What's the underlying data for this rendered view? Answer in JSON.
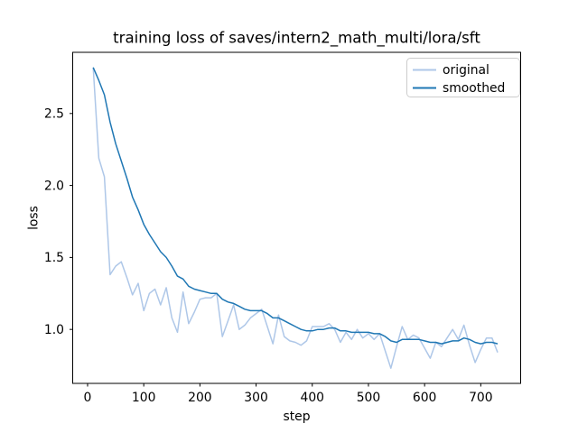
{
  "figure": {
    "title": "training loss of saves/intern2_math_multi/lora/sft",
    "xlabel": "step",
    "ylabel": "loss"
  },
  "colors": {
    "background": "#ffffff",
    "axes_frame": "#000000",
    "text": "#000000",
    "original_line": "#aec7e8",
    "smoothed_line": "#1f77b4",
    "legend_border": "#cccccc",
    "legend_background": "#ffffff"
  },
  "legend": {
    "position": "upper right",
    "items": [
      {
        "label": "original",
        "color": "#aec7e8"
      },
      {
        "label": "smoothed",
        "color": "#1f77b4"
      }
    ]
  },
  "chart_data": {
    "type": "line",
    "title": "training loss of saves/intern2_math_multi/lora/sft",
    "xlabel": "step",
    "ylabel": "loss",
    "grid": false,
    "legend_position": "upper right",
    "xlim": [
      -26.5,
      771
    ],
    "ylim": [
      0.625,
      2.925
    ],
    "xticks": [
      0,
      100,
      200,
      300,
      400,
      500,
      600,
      700
    ],
    "xticklabels": [
      "0",
      "100",
      "200",
      "300",
      "400",
      "500",
      "600",
      "700"
    ],
    "yticks": [
      1.0,
      1.5,
      2.0,
      2.5
    ],
    "yticklabels": [
      "1.0",
      "1.5",
      "2.0",
      "2.5"
    ],
    "x": [
      10,
      20,
      30,
      40,
      50,
      60,
      70,
      80,
      90,
      100,
      110,
      120,
      130,
      140,
      150,
      160,
      170,
      180,
      190,
      200,
      210,
      220,
      230,
      240,
      250,
      260,
      270,
      280,
      290,
      300,
      310,
      320,
      330,
      340,
      350,
      360,
      370,
      380,
      390,
      400,
      410,
      420,
      430,
      440,
      450,
      460,
      470,
      480,
      490,
      500,
      510,
      520,
      530,
      540,
      550,
      560,
      570,
      580,
      590,
      600,
      610,
      620,
      630,
      640,
      650,
      660,
      670,
      680,
      690,
      700,
      710,
      720,
      730
    ],
    "series": [
      {
        "name": "original",
        "color": "#aec7e8",
        "values": [
          2.82,
          2.19,
          2.06,
          1.38,
          1.44,
          1.47,
          1.36,
          1.24,
          1.32,
          1.13,
          1.25,
          1.28,
          1.17,
          1.29,
          1.08,
          0.98,
          1.26,
          1.04,
          1.12,
          1.21,
          1.22,
          1.22,
          1.25,
          0.95,
          1.06,
          1.17,
          1.0,
          1.03,
          1.08,
          1.11,
          1.14,
          1.02,
          0.9,
          1.1,
          0.95,
          0.92,
          0.91,
          0.89,
          0.92,
          1.02,
          1.02,
          1.02,
          1.04,
          1.0,
          0.91,
          0.98,
          0.93,
          1.0,
          0.94,
          0.97,
          0.93,
          0.97,
          0.85,
          0.73,
          0.88,
          1.02,
          0.93,
          0.96,
          0.94,
          0.87,
          0.8,
          0.91,
          0.88,
          0.94,
          1.0,
          0.93,
          1.03,
          0.89,
          0.77,
          0.86,
          0.94,
          0.94,
          0.84
        ]
      },
      {
        "name": "smoothed",
        "color": "#1f77b4",
        "values": [
          2.82,
          2.73,
          2.63,
          2.44,
          2.29,
          2.17,
          2.05,
          1.92,
          1.83,
          1.73,
          1.66,
          1.6,
          1.54,
          1.5,
          1.44,
          1.37,
          1.35,
          1.3,
          1.28,
          1.27,
          1.26,
          1.25,
          1.25,
          1.21,
          1.19,
          1.18,
          1.16,
          1.14,
          1.13,
          1.13,
          1.13,
          1.11,
          1.08,
          1.08,
          1.06,
          1.04,
          1.02,
          1.0,
          0.99,
          0.99,
          1.0,
          1.0,
          1.01,
          1.01,
          0.99,
          0.99,
          0.98,
          0.98,
          0.98,
          0.98,
          0.97,
          0.97,
          0.95,
          0.92,
          0.91,
          0.93,
          0.93,
          0.93,
          0.93,
          0.92,
          0.91,
          0.91,
          0.9,
          0.91,
          0.92,
          0.92,
          0.94,
          0.93,
          0.91,
          0.9,
          0.91,
          0.91,
          0.9
        ]
      }
    ]
  }
}
